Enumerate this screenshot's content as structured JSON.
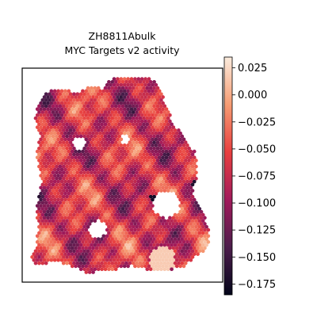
{
  "chart_data": {
    "type": "heatmap",
    "title": "ZH8811Abulk",
    "subtitle": "MYC Targets v2 activity",
    "xlabel": "",
    "ylabel": "",
    "colormap": "rocket",
    "colorbar": {
      "range": [
        -0.185,
        0.035
      ],
      "ticks": [
        0.025,
        0.0,
        -0.025,
        -0.05,
        -0.075,
        -0.1,
        -0.125,
        -0.15,
        -0.175
      ],
      "tick_labels": [
        "0.025",
        "0.000",
        "−0.025",
        "−0.050",
        "−0.075",
        "−0.100",
        "−0.125",
        "−0.150",
        "−0.175"
      ],
      "placement": "right"
    },
    "colors": {
      "colormap_stops": [
        "#03051a",
        "#4c1d4b",
        "#a11a5b",
        "#e83f3f",
        "#f69c73",
        "#faebdd"
      ]
    },
    "grid": false
  }
}
